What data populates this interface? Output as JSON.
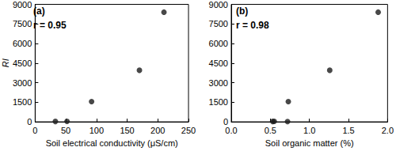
{
  "chart_data": [
    {
      "type": "scatter",
      "title": "(a)",
      "annotations": [
        "r = 0.95"
      ],
      "x_label": "Soil electrical conductivity (μS/cm)",
      "y_label": "RI",
      "x": [
        33,
        52,
        92,
        170,
        210
      ],
      "values": [
        30,
        40,
        1550,
        3950,
        8400
      ],
      "color": "#1a1a1a",
      "marker": "circle",
      "xlim": [
        0,
        250
      ],
      "xticks": [
        0,
        50,
        100,
        150,
        200,
        250
      ],
      "ylim": [
        0,
        9000
      ],
      "yticks": [
        0,
        1500,
        3000,
        4500,
        6000,
        7500,
        9000
      ]
    },
    {
      "type": "scatter",
      "title": "(b)",
      "annotations": [
        "r = 0.98"
      ],
      "x_label": "Soil organic matter (%)",
      "x": [
        0.53,
        0.55,
        0.72,
        0.73,
        1.26,
        1.88
      ],
      "values": [
        30,
        40,
        20,
        1550,
        3950,
        8400
      ],
      "color": "#1a1a1a",
      "marker": "circle",
      "xlim": [
        0,
        2
      ],
      "xticks": [
        {
          "value": 0,
          "label": "0.0"
        },
        0.5,
        {
          "value": 1,
          "label": "1.0"
        },
        1.5,
        {
          "value": 2,
          "label": "2.0"
        }
      ],
      "ylim": [
        0,
        9000
      ],
      "yticks": [
        0,
        1500,
        3000,
        4500,
        6000,
        7500,
        9000
      ]
    }
  ]
}
